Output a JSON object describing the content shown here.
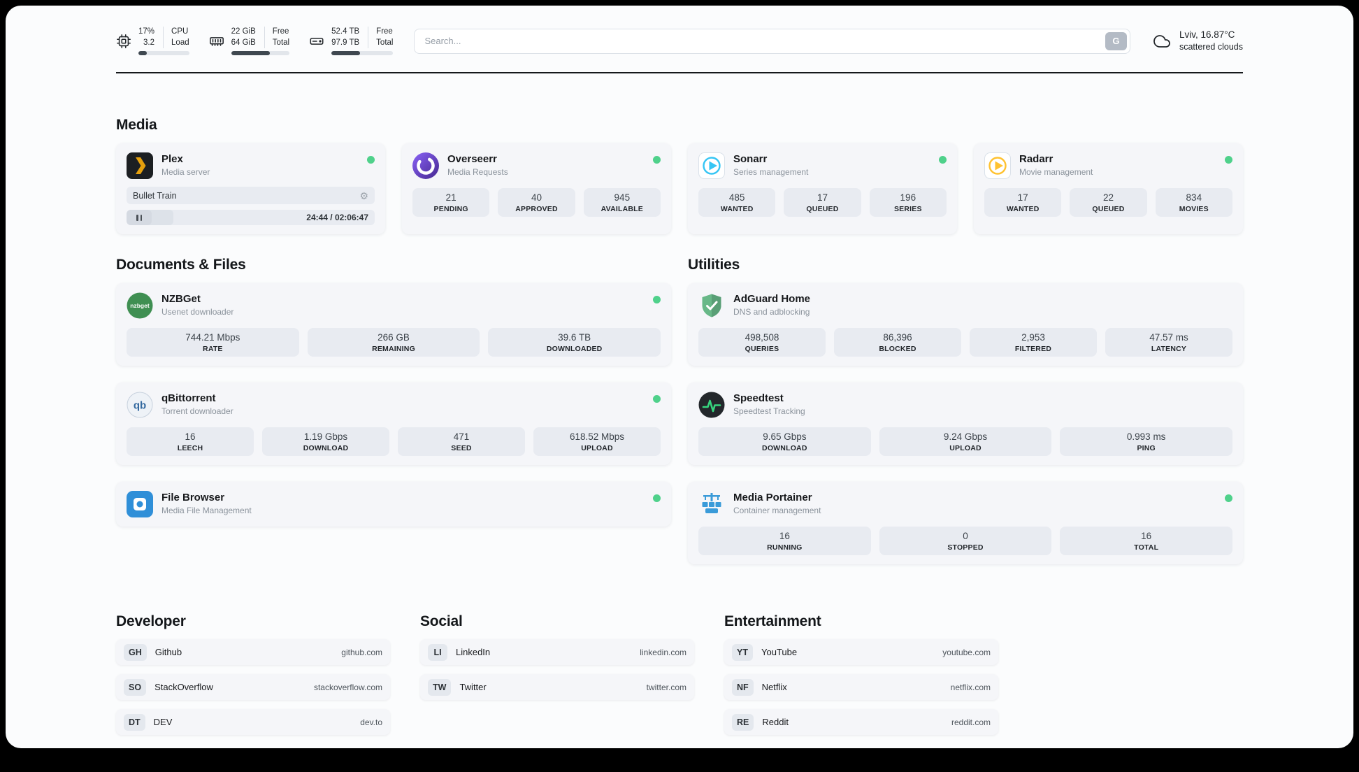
{
  "colors": {
    "status_online": "#4fd18b",
    "plex_accent": "#e5a00d",
    "sonarr_accent": "#35c5f4",
    "radarr_accent": "#ffc230",
    "adguard_accent": "#68b888",
    "speedtest_accent": "#37d57e",
    "portainer_accent": "#3a9bd9",
    "filebrowser_accent": "#2f8fd8"
  },
  "header": {
    "cpu": {
      "value_top": "17%",
      "value_bottom": "3.2",
      "label_top": "CPU",
      "label_bottom": "Load",
      "progress": 17
    },
    "ram": {
      "value_top": "22 GiB",
      "value_bottom": "64 GiB",
      "label_top": "Free",
      "label_bottom": "Total",
      "progress": 66
    },
    "disk": {
      "value_top": "52.4 TB",
      "value_bottom": "97.9 TB",
      "label_top": "Free",
      "label_bottom": "Total",
      "progress": 46
    },
    "search": {
      "placeholder": "Search...",
      "engine_label": "G"
    },
    "weather": {
      "location": "Lviv, 16.87°C",
      "condition": "scattered clouds"
    }
  },
  "media": {
    "title": "Media",
    "plex": {
      "name": "Plex",
      "subtitle": "Media server",
      "now_playing": "Bullet Train",
      "time": "24:44 / 02:06:47",
      "progress": 19
    },
    "overseerr": {
      "name": "Overseerr",
      "subtitle": "Media Requests",
      "stats": [
        {
          "value": "21",
          "label": "PENDING"
        },
        {
          "value": "40",
          "label": "APPROVED"
        },
        {
          "value": "945",
          "label": "AVAILABLE"
        }
      ]
    },
    "sonarr": {
      "name": "Sonarr",
      "subtitle": "Series management",
      "stats": [
        {
          "value": "485",
          "label": "WANTED"
        },
        {
          "value": "17",
          "label": "QUEUED"
        },
        {
          "value": "196",
          "label": "SERIES"
        }
      ]
    },
    "radarr": {
      "name": "Radarr",
      "subtitle": "Movie management",
      "stats": [
        {
          "value": "17",
          "label": "WANTED"
        },
        {
          "value": "22",
          "label": "QUEUED"
        },
        {
          "value": "834",
          "label": "MOVIES"
        }
      ]
    }
  },
  "documents": {
    "title": "Documents & Files",
    "nzbget": {
      "name": "NZBGet",
      "subtitle": "Usenet downloader",
      "stats": [
        {
          "value": "744.21 Mbps",
          "label": "RATE"
        },
        {
          "value": "266 GB",
          "label": "REMAINING"
        },
        {
          "value": "39.6 TB",
          "label": "DOWNLOADED"
        }
      ]
    },
    "qbittorrent": {
      "name": "qBittorrent",
      "subtitle": "Torrent downloader",
      "stats": [
        {
          "value": "16",
          "label": "LEECH"
        },
        {
          "value": "1.19 Gbps",
          "label": "DOWNLOAD"
        },
        {
          "value": "471",
          "label": "SEED"
        },
        {
          "value": "618.52 Mbps",
          "label": "UPLOAD"
        }
      ]
    },
    "filebrowser": {
      "name": "File Browser",
      "subtitle": "Media File Management"
    }
  },
  "utilities": {
    "title": "Utilities",
    "adguard": {
      "name": "AdGuard Home",
      "subtitle": "DNS and adblocking",
      "stats": [
        {
          "value": "498,508",
          "label": "QUERIES"
        },
        {
          "value": "86,396",
          "label": "BLOCKED"
        },
        {
          "value": "2,953",
          "label": "FILTERED"
        },
        {
          "value": "47.57 ms",
          "label": "LATENCY"
        }
      ]
    },
    "speedtest": {
      "name": "Speedtest",
      "subtitle": "Speedtest Tracking",
      "stats": [
        {
          "value": "9.65 Gbps",
          "label": "DOWNLOAD"
        },
        {
          "value": "9.24 Gbps",
          "label": "UPLOAD"
        },
        {
          "value": "0.993 ms",
          "label": "PING"
        }
      ]
    },
    "portainer": {
      "name": "Media Portainer",
      "subtitle": "Container management",
      "stats": [
        {
          "value": "16",
          "label": "RUNNING"
        },
        {
          "value": "0",
          "label": "STOPPED"
        },
        {
          "value": "16",
          "label": "TOTAL"
        }
      ]
    }
  },
  "bookmarks": {
    "developer": {
      "title": "Developer",
      "items": [
        {
          "abbr": "GH",
          "name": "Github",
          "url": "github.com"
        },
        {
          "abbr": "SO",
          "name": "StackOverflow",
          "url": "stackoverflow.com"
        },
        {
          "abbr": "DT",
          "name": "DEV",
          "url": "dev.to"
        }
      ]
    },
    "social": {
      "title": "Social",
      "items": [
        {
          "abbr": "LI",
          "name": "LinkedIn",
          "url": "linkedin.com"
        },
        {
          "abbr": "TW",
          "name": "Twitter",
          "url": "twitter.com"
        }
      ]
    },
    "entertainment": {
      "title": "Entertainment",
      "items": [
        {
          "abbr": "YT",
          "name": "YouTube",
          "url": "youtube.com"
        },
        {
          "abbr": "NF",
          "name": "Netflix",
          "url": "netflix.com"
        },
        {
          "abbr": "RE",
          "name": "Reddit",
          "url": "reddit.com"
        }
      ]
    }
  }
}
